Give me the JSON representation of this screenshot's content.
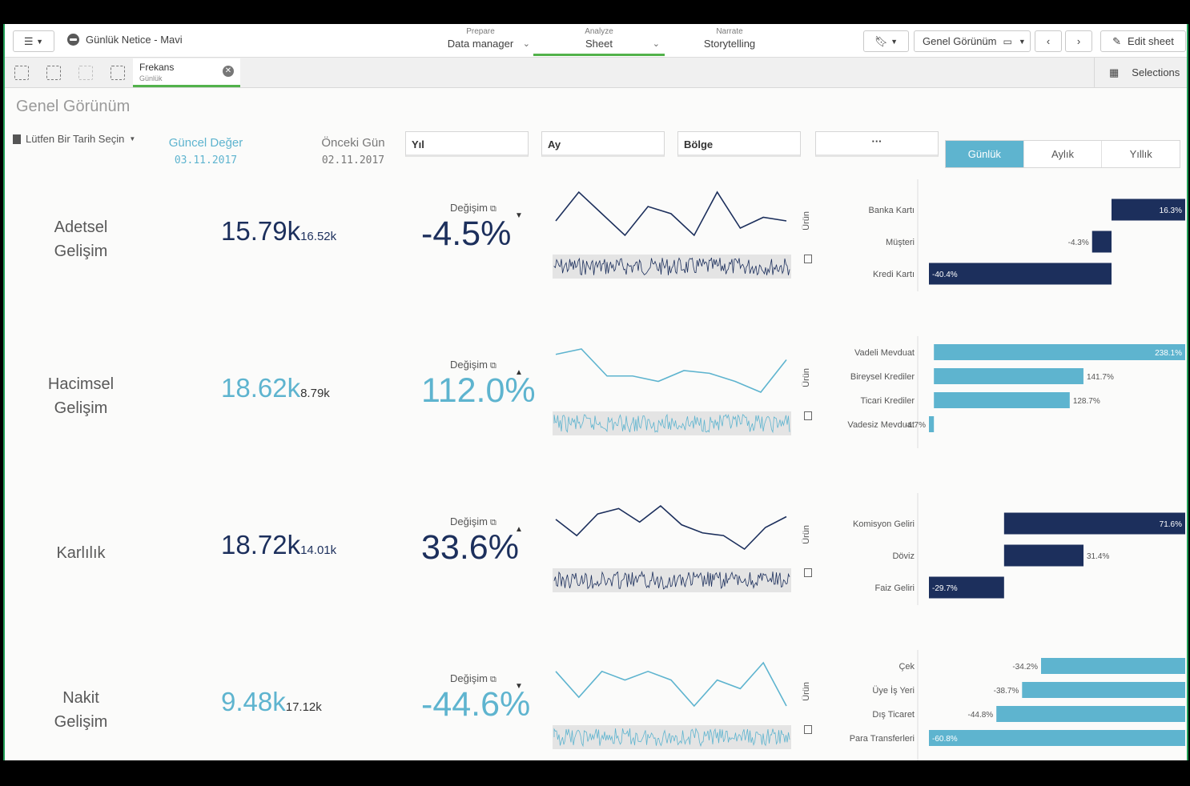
{
  "app": {
    "title": "Günlük Netice - Mavi"
  },
  "nav": [
    {
      "small": "Prepare",
      "big": "Data manager"
    },
    {
      "small": "Analyze",
      "big": "Sheet"
    },
    {
      "small": "Narrate",
      "big": "Storytelling"
    }
  ],
  "toolbar": {
    "sheet": "Genel Görünüm",
    "edit": "Edit sheet"
  },
  "selection": {
    "field": "Frekans",
    "value": "Günlük",
    "button": "Selections"
  },
  "sheet": {
    "title": "Genel Görünüm",
    "date_prompt": "Lütfen Bir Tarih Seçin",
    "current_label": "Güncel Değer",
    "current_date": "03.11.2017",
    "previous_label": "Önceki Gün",
    "previous_date": "02.11.2017"
  },
  "filters": [
    "Yıl",
    "Ay",
    "Bölge",
    "···"
  ],
  "periods": [
    "Günlük",
    "Aylık",
    "Yıllık"
  ],
  "colors": {
    "dark": "#1c2f5c",
    "light": "#5eb4cf",
    "accent": "#52b24b"
  },
  "side_label": "Ürün",
  "rows": [
    {
      "label": [
        "Adetsel",
        "Gelişim"
      ],
      "value": "15.79k",
      "sub": "16.52k",
      "change_label": "Değişim",
      "change": "-4.5%",
      "direction": "down",
      "color": "#1c2f5c",
      "trend": [
        5,
        9,
        6,
        3,
        7,
        6,
        3,
        9,
        4,
        5.5,
        5
      ],
      "bars": [
        {
          "cat": "Banka Kartı",
          "val": 16.3,
          "text": "16.3%"
        },
        {
          "cat": "Müşteri",
          "val": -4.3,
          "text": "-4.3%"
        },
        {
          "cat": "Kredi Kartı",
          "val": -40.4,
          "text": "-40.4%"
        }
      ],
      "bar_range": [
        -40.4,
        16.3
      ]
    },
    {
      "label": [
        "Hacimsel",
        "Gelişim"
      ],
      "value": "18.62k",
      "sub": "8.79k",
      "change_label": "Değişim",
      "change": "112.0%",
      "direction": "up",
      "color": "#5eb4cf",
      "trend": [
        8,
        9,
        4,
        4,
        3,
        5,
        4.5,
        3,
        1,
        7
      ],
      "bars": [
        {
          "cat": "Vadeli Mevduat",
          "val": 238.1,
          "text": "238.1%"
        },
        {
          "cat": "Bireysel Krediler",
          "val": 141.7,
          "text": "141.7%"
        },
        {
          "cat": "Ticari Krediler",
          "val": 128.7,
          "text": "128.7%"
        },
        {
          "cat": "Vadesiz Mevduat",
          "val": -4.7,
          "text": "-4.7%"
        }
      ],
      "bar_range": [
        -4.7,
        238.1
      ]
    },
    {
      "label": [
        "Karlılık"
      ],
      "value": "18.72k",
      "sub": "14.01k",
      "change_label": "Değişim",
      "change": "33.6%",
      "direction": "up",
      "color": "#1c2f5c",
      "trend": [
        6,
        3,
        7,
        8,
        5.5,
        8.5,
        5,
        3.5,
        3,
        0.5,
        4.5,
        6.5
      ],
      "bars": [
        {
          "cat": "Komisyon Geliri",
          "val": 71.6,
          "text": "71.6%"
        },
        {
          "cat": "Döviz",
          "val": 31.4,
          "text": "31.4%"
        },
        {
          "cat": "Faiz Geliri",
          "val": -29.7,
          "text": "-29.7%"
        }
      ],
      "bar_range": [
        -29.7,
        71.6
      ]
    },
    {
      "label": [
        "Nakit",
        "Gelişim"
      ],
      "value": "9.48k",
      "sub": "17.12k",
      "change_label": "Değişim",
      "change": "-44.6%",
      "direction": "down",
      "color": "#5eb4cf",
      "trend": [
        6,
        3,
        6,
        5,
        6,
        5,
        2,
        5,
        4,
        7,
        2
      ],
      "bars": [
        {
          "cat": "Çek",
          "val": -34.2,
          "text": "-34.2%"
        },
        {
          "cat": "Üye İş Yeri",
          "val": -38.7,
          "text": "-38.7%"
        },
        {
          "cat": "Dış Ticaret",
          "val": -44.8,
          "text": "-44.8%"
        },
        {
          "cat": "Para Transferleri",
          "val": -60.8,
          "text": "-60.8%"
        }
      ],
      "bar_range": [
        -60.8,
        0
      ]
    }
  ]
}
